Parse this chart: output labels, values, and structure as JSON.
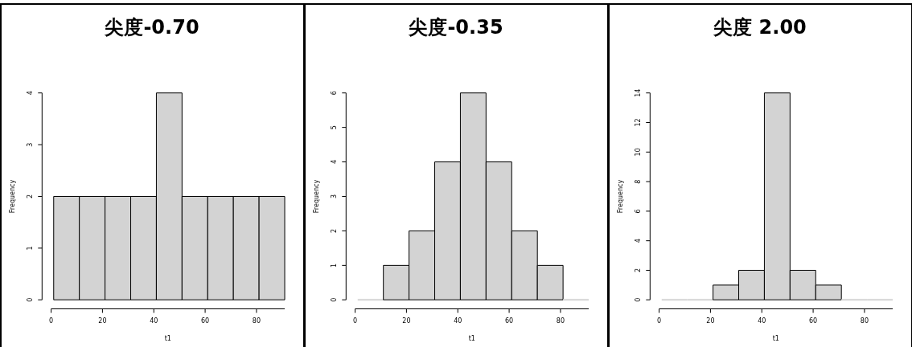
{
  "chart_data": [
    {
      "type": "histogram",
      "title": "尖度-0.70",
      "xlabel": "t1",
      "ylabel": "Frequency",
      "bins": [
        1,
        11,
        21,
        31,
        41,
        51,
        61,
        71,
        81,
        91
      ],
      "values": [
        2,
        2,
        2,
        2,
        4,
        2,
        2,
        2,
        2
      ],
      "color": "#d3d3d3",
      "xlim": [
        0,
        91
      ],
      "ylim": [
        0,
        4
      ],
      "xticks": [
        0,
        20,
        40,
        60,
        80
      ],
      "yticks": [
        0,
        1,
        2,
        3,
        4
      ]
    },
    {
      "type": "histogram",
      "title": "尖度-0.35",
      "xlabel": "t1",
      "ylabel": "Frequency",
      "bins": [
        1,
        11,
        21,
        31,
        41,
        51,
        61,
        71,
        81,
        91
      ],
      "values": [
        0,
        1,
        2,
        4,
        6,
        4,
        2,
        1,
        0
      ],
      "color": "#d3d3d3",
      "xlim": [
        0,
        91
      ],
      "ylim": [
        0,
        6
      ],
      "xticks": [
        0,
        20,
        40,
        60,
        80
      ],
      "yticks": [
        0,
        1,
        2,
        3,
        4,
        5,
        6
      ]
    },
    {
      "type": "histogram",
      "title": "尖度 2.00",
      "xlabel": "t1",
      "ylabel": "Frequency",
      "bins": [
        1,
        11,
        21,
        31,
        41,
        51,
        61,
        71,
        81,
        91
      ],
      "values": [
        0,
        0,
        1,
        2,
        14,
        2,
        1,
        0,
        0
      ],
      "color": "#d3d3d3",
      "xlim": [
        0,
        91
      ],
      "ylim": [
        0,
        14
      ],
      "xticks": [
        0,
        20,
        40,
        60,
        80
      ],
      "yticks": [
        0,
        2,
        4,
        6,
        8,
        10,
        12,
        14
      ]
    }
  ]
}
